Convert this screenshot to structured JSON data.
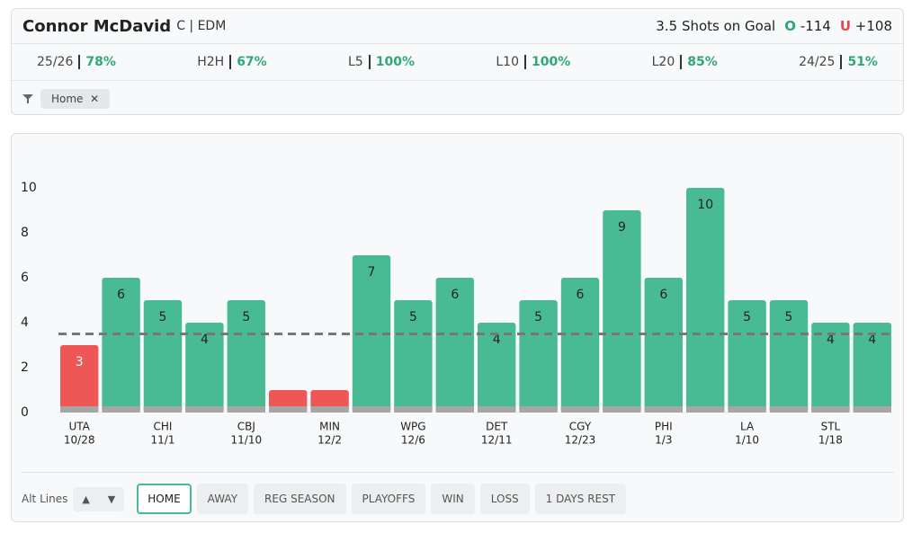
{
  "header": {
    "player": "Connor McDavid",
    "position": "C | EDM",
    "market": "Shots on Goal",
    "over_label": "O",
    "over_odds": "-114",
    "under_label": "U",
    "under_odds": "+108"
  },
  "stats": [
    {
      "label": "25/26",
      "value": "78%"
    },
    {
      "label": "H2H",
      "value": "67%"
    },
    {
      "label": "L5",
      "value": "100%"
    },
    {
      "label": "L10",
      "value": "100%"
    },
    {
      "label": "L20",
      "value": "85%"
    },
    {
      "label": "24/25",
      "value": "51%"
    }
  ],
  "filter": {
    "chip": "Home"
  },
  "chart_data": {
    "type": "bar",
    "threshold": 3.5,
    "categories": [
      "UTA",
      null,
      "CHI",
      null,
      "CBJ",
      null,
      "MIN",
      null,
      "WPG",
      null,
      "DET",
      null,
      "CGY",
      null,
      "PHI",
      null,
      "LA",
      null,
      "STL",
      null
    ],
    "dates": [
      "10/28",
      null,
      "11/1",
      null,
      "11/10",
      null,
      "12/2",
      null,
      "12/6",
      null,
      "12/11",
      null,
      "12/23",
      null,
      "1/3",
      null,
      "1/10",
      null,
      "1/18",
      null
    ],
    "values": [
      3,
      6,
      5,
      4,
      5,
      1,
      1,
      7,
      5,
      6,
      4,
      5,
      6,
      9,
      6,
      10,
      5,
      5,
      4,
      4
    ],
    "color": "#48bb94",
    "under_color": "#ef5656",
    "ylim": [
      0,
      11
    ],
    "yticks": [
      0,
      2,
      4,
      6,
      8,
      10
    ],
    "grid": false
  },
  "controls": {
    "alt_lines": "Alt Lines",
    "buttons": [
      "HOME",
      "AWAY",
      "REG SEASON",
      "PLAYOFFS",
      "WIN",
      "LOSS",
      "1 DAYS REST"
    ]
  }
}
